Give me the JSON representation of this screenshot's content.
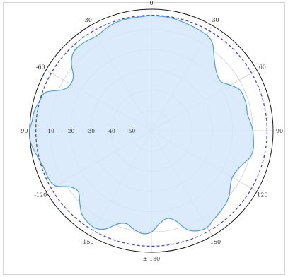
{
  "chart_data": {
    "type": "polar-area",
    "angle_unit": "degrees",
    "angle_zero": "top",
    "angle_direction": "clockwise",
    "angle_ticks": [
      "0",
      "30",
      "60",
      "90",
      "120",
      "150",
      "± 180",
      "-150",
      "-120",
      "-90",
      "-60",
      "-30"
    ],
    "radial_ticks": [
      "-10",
      "-20",
      "-30",
      "-40",
      "-50"
    ],
    "radial_range": [
      -60,
      0
    ],
    "reference_ring_db": -3,
    "series": [
      {
        "theta": [
          0,
          10,
          20,
          30,
          35,
          40,
          45,
          50,
          55,
          60,
          65,
          70,
          75,
          80,
          85,
          90,
          95,
          100,
          105,
          110,
          115,
          120,
          125,
          130,
          135,
          140,
          145,
          150,
          155,
          160,
          165,
          170,
          175,
          180,
          185,
          190,
          195,
          200,
          205,
          210,
          215,
          220,
          225,
          230,
          235,
          240,
          245,
          250,
          255,
          260,
          265,
          270,
          275,
          280,
          285,
          290,
          295,
          300,
          305,
          310,
          315,
          320,
          325,
          330,
          335,
          340,
          345,
          350,
          355
        ],
        "r": [
          -3.2,
          -3.5,
          -4.5,
          -5.5,
          -7.5,
          -12,
          -15.5,
          -17.5,
          -18,
          -15,
          -12,
          -11.5,
          -11.5,
          -12,
          -11,
          -10,
          -9.5,
          -9,
          -9.5,
          -12,
          -13.5,
          -14,
          -12.5,
          -10,
          -8.5,
          -7.5,
          -6.5,
          -5,
          -5.5,
          -8,
          -14,
          -16,
          -14,
          -10,
          -9,
          -10.5,
          -12.5,
          -11,
          -6.5,
          -4.5,
          -5,
          -6.5,
          -10,
          -13,
          -11.5,
          -5.5,
          -4,
          -4,
          -3,
          -1.5,
          0,
          0,
          -1,
          -1.5,
          -3,
          -4.5,
          -12,
          -14,
          -13,
          -8.5,
          -5.5,
          -5,
          -5.5,
          -6,
          -5,
          -4,
          -3.5,
          -3.5,
          -3.5
        ]
      }
    ],
    "colors": {
      "fill": "#d6e8fb",
      "line": "#4a9ee8",
      "grid": "#cfcfcf",
      "reference_ring": "#4448d8",
      "outer_ring": "#1a1a1a"
    }
  }
}
